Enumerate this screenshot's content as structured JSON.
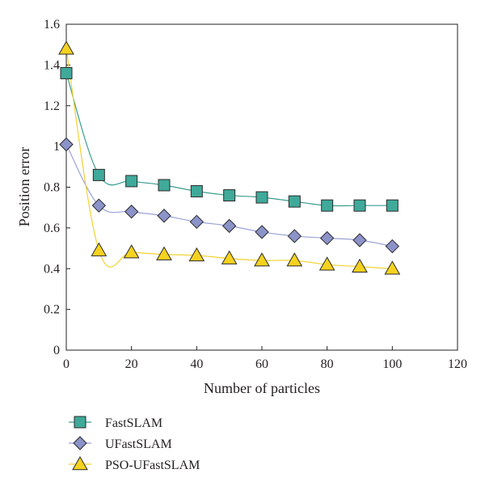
{
  "chart_data": {
    "type": "line",
    "title": "",
    "xlabel": "Number of particles",
    "ylabel": "Position error",
    "xlim": [
      0,
      120
    ],
    "ylim": [
      0,
      1.6
    ],
    "xticks": [
      0,
      20,
      40,
      60,
      80,
      100,
      120
    ],
    "yticks": [
      0,
      0.2,
      0.4,
      0.6,
      0.8,
      1,
      1.2,
      1.4,
      1.6
    ],
    "xtick_labels": [
      "0",
      "20",
      "40",
      "60",
      "80",
      "100",
      "120"
    ],
    "ytick_labels": [
      "0",
      "0.2",
      "0.4",
      "0.6",
      "0.8",
      "1",
      "1.2",
      "1.4",
      "1.6"
    ],
    "grid": false,
    "legend_position": "bottom-left, below plot",
    "x": [
      0,
      10,
      20,
      30,
      40,
      50,
      60,
      70,
      80,
      90,
      100
    ],
    "series": [
      {
        "name": "FastSLAM",
        "marker": "square",
        "line_color": "#3a9d8f",
        "marker_color": "#3fa99a",
        "values": [
          1.36,
          0.86,
          0.83,
          0.81,
          0.78,
          0.76,
          0.75,
          0.73,
          0.71,
          0.71,
          0.71
        ]
      },
      {
        "name": "UFastSLAM",
        "marker": "diamond",
        "line_color": "#9aa3d6",
        "marker_color": "#8b93c9",
        "values": [
          1.01,
          0.71,
          0.68,
          0.66,
          0.63,
          0.61,
          0.58,
          0.56,
          0.55,
          0.54,
          0.51
        ]
      },
      {
        "name": "PSO-UFastSLAM",
        "marker": "triangle",
        "line_color": "#f2d230",
        "marker_color": "#f5d21f",
        "values": [
          1.48,
          0.49,
          0.48,
          0.47,
          0.465,
          0.45,
          0.44,
          0.44,
          0.42,
          0.41,
          0.4
        ]
      }
    ]
  }
}
